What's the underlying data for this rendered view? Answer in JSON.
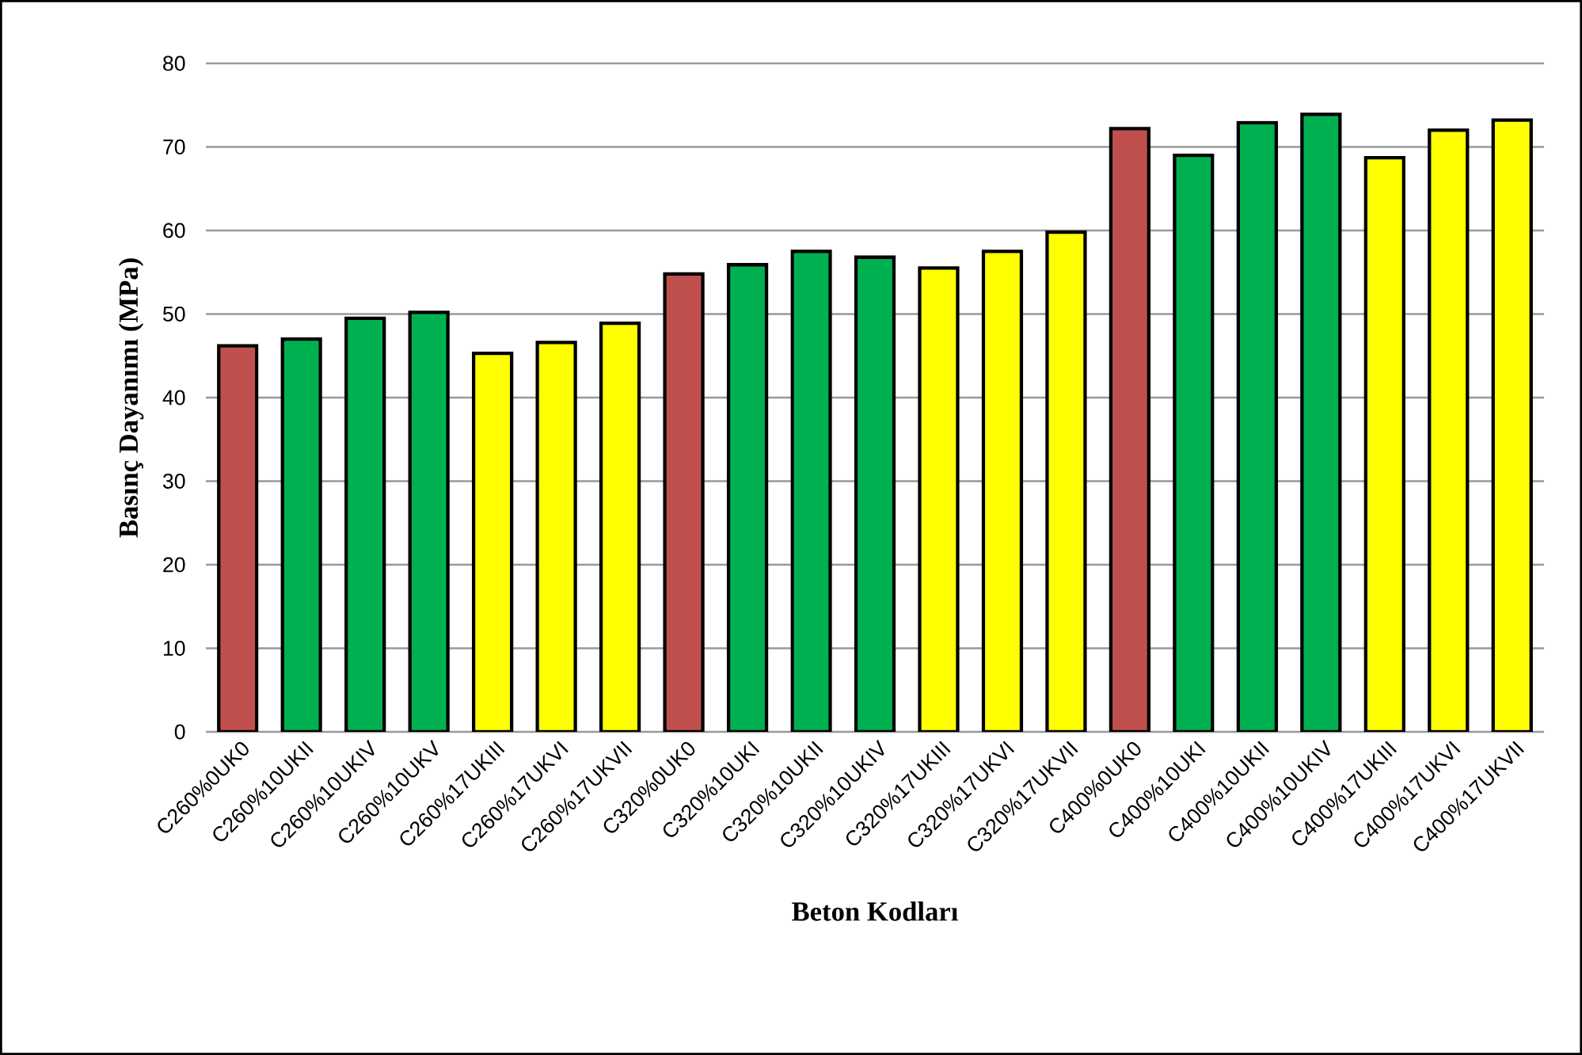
{
  "chart_data": {
    "type": "bar",
    "xlabel": "Beton Kodları",
    "ylabel": "Basınç Dayanımı (MPa)",
    "categories": [
      "C260%0UK0",
      "C260%10UKII",
      "C260%10UKIV",
      "C260%10UKV",
      "C260%17UKIII",
      "C260%17UKVI",
      "C260%17UKVII",
      "C320%0UK0",
      "C320%10UKI",
      "C320%10UKII",
      "C320%10UKIV",
      "C320%17UKIII",
      "C320%17UKVI",
      "C320%17UKVII",
      "C400%0UK0",
      "C400%10UKI",
      "C400%10UKII",
      "C400%10UKIV",
      "C400%17UKIII",
      "C400%17UKVI",
      "C400%17UKVII"
    ],
    "values": [
      46.2,
      47.0,
      49.5,
      50.2,
      45.3,
      46.6,
      48.9,
      54.8,
      55.9,
      57.5,
      56.8,
      55.5,
      57.5,
      59.8,
      72.2,
      69.0,
      72.9,
      73.9,
      68.7,
      72.0,
      73.2
    ],
    "colors": [
      "#c0504d",
      "#00b050",
      "#00b050",
      "#00b050",
      "#ffff00",
      "#ffff00",
      "#ffff00",
      "#c0504d",
      "#00b050",
      "#00b050",
      "#00b050",
      "#ffff00",
      "#ffff00",
      "#ffff00",
      "#c0504d",
      "#00b050",
      "#00b050",
      "#00b050",
      "#ffff00",
      "#ffff00",
      "#ffff00"
    ],
    "ylim": [
      0,
      80
    ],
    "yticks": [
      0,
      10,
      20,
      30,
      40,
      50,
      60,
      70,
      80
    ],
    "grid": "y"
  }
}
